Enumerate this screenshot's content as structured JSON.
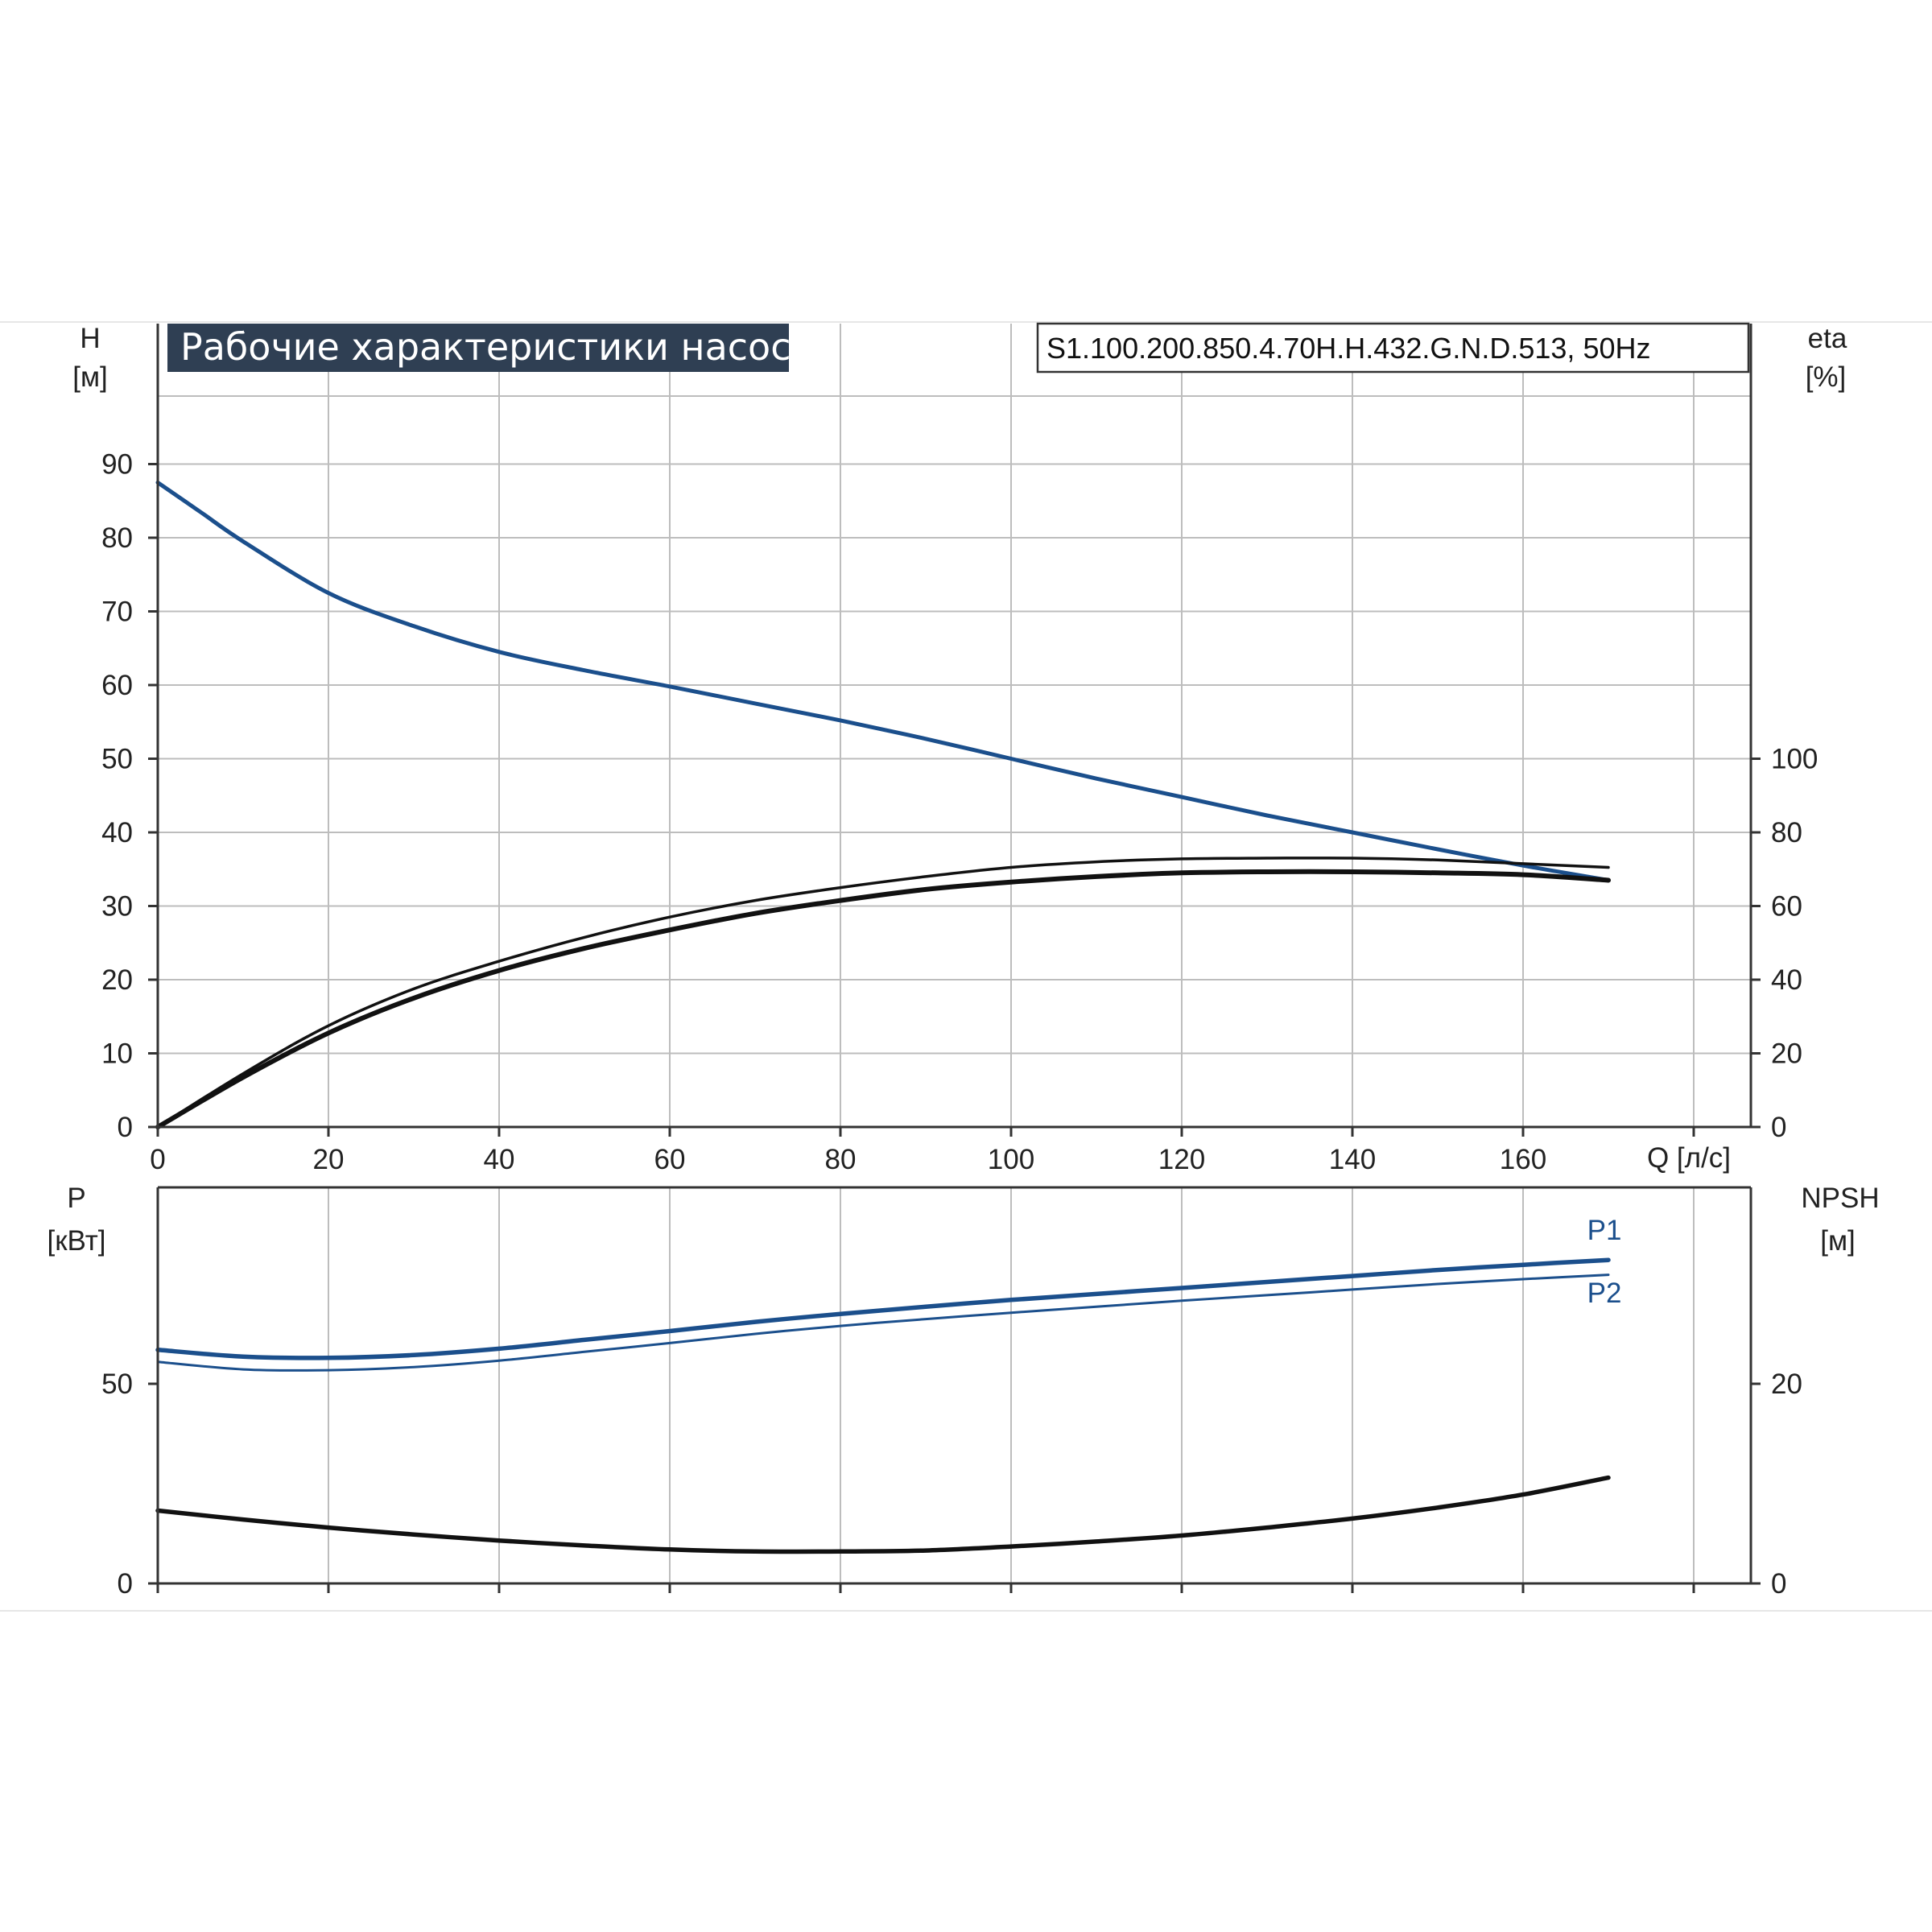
{
  "header": {
    "title": "Рабочие характеристики насоса",
    "model": "S1.100.200.850.4.70H.H.432.G.N.D.513, 50Hz"
  },
  "colors": {
    "blue": "#1b4f8c",
    "black": "#111111",
    "title_bg": "#2f3f53",
    "grid": "#bdbdbd"
  },
  "chart_data": [
    {
      "type": "line",
      "x_unit_label": "Q [л/с]",
      "x_ticks": [
        "0",
        "20",
        "40",
        "60",
        "80",
        "100",
        "120",
        "140",
        "160"
      ],
      "xlim": [
        0,
        186
      ],
      "left_axis": {
        "label_line1": "H",
        "label_line2": "[м]",
        "ticks": [
          "0",
          "10",
          "20",
          "30",
          "40",
          "50",
          "60",
          "70",
          "80",
          "90"
        ],
        "ylim": [
          0,
          100
        ]
      },
      "right_axis": {
        "label_line1": "eta",
        "label_line2": "[%]",
        "ticks": [
          "0",
          "20",
          "40",
          "60",
          "80",
          "100"
        ],
        "ylim": [
          0,
          200
        ]
      },
      "grid": true,
      "series": [
        {
          "axis": "left",
          "color": "#1b4f8c",
          "x": [
            0,
            5,
            10,
            20,
            30,
            40,
            50,
            60,
            70,
            80,
            90,
            100,
            110,
            120,
            130,
            140,
            150,
            160,
            170
          ],
          "y": [
            87.5,
            83.5,
            79.5,
            72.5,
            68,
            64.5,
            62,
            59.8,
            57.5,
            55.2,
            52.7,
            50,
            47.3,
            44.8,
            42.3,
            40,
            37.7,
            35.5,
            33.5
          ]
        },
        {
          "axis": "right",
          "color": "#111111",
          "x": [
            0,
            10,
            20,
            30,
            40,
            50,
            60,
            70,
            80,
            90,
            100,
            110,
            120,
            130,
            140,
            150,
            160,
            170
          ],
          "y": [
            0,
            14.5,
            27.5,
            37.5,
            45,
            51.5,
            57,
            61.5,
            65,
            68,
            70.5,
            72,
            72.8,
            73,
            73,
            72.5,
            71.5,
            70.5
          ]
        },
        {
          "axis": "right",
          "color": "#111111",
          "x": [
            0,
            10,
            20,
            30,
            40,
            50,
            60,
            70,
            80,
            90,
            100,
            110,
            120,
            130,
            140,
            150,
            160,
            170
          ],
          "y": [
            0,
            13.5,
            25.5,
            35,
            42.5,
            48.5,
            53.5,
            58,
            61.5,
            64.5,
            66.5,
            68,
            69,
            69.3,
            69.3,
            69,
            68.5,
            67
          ]
        }
      ]
    },
    {
      "type": "line",
      "left_axis": {
        "label_line1": "P",
        "label_line2": "[кВт]",
        "ticks": [
          "0",
          "50"
        ],
        "ylim": [
          0,
          100
        ]
      },
      "right_axis": {
        "label_line1": "NPSH",
        "label_line2": "[м]",
        "ticks": [
          "0",
          "20"
        ],
        "ylim": [
          0,
          40
        ]
      },
      "grid": true,
      "series": [
        {
          "name": "P1",
          "axis": "left",
          "color": "#1b4f8c",
          "x": [
            0,
            10,
            20,
            30,
            40,
            50,
            60,
            70,
            80,
            90,
            100,
            110,
            120,
            130,
            140,
            150,
            160,
            170
          ],
          "y": [
            58.5,
            56.8,
            56.5,
            57.2,
            58.8,
            61,
            63.2,
            65.5,
            67.5,
            69.3,
            71,
            72.5,
            74,
            75.5,
            77,
            78.5,
            79.8,
            81
          ]
        },
        {
          "name": "P2",
          "axis": "left",
          "color": "#1b4f8c",
          "x": [
            0,
            10,
            20,
            30,
            40,
            50,
            60,
            70,
            80,
            90,
            100,
            110,
            120,
            130,
            140,
            150,
            160,
            170
          ],
          "y": [
            55.5,
            53.6,
            53.4,
            54.2,
            55.8,
            58,
            60.2,
            62.5,
            64.5,
            66.2,
            67.8,
            69.3,
            70.8,
            72.2,
            73.6,
            75,
            76.2,
            77.3
          ]
        },
        {
          "axis": "right",
          "color": "#111111",
          "x": [
            0,
            10,
            20,
            30,
            40,
            50,
            60,
            70,
            80,
            90,
            100,
            110,
            120,
            130,
            140,
            150,
            160,
            170
          ],
          "y": [
            7.3,
            6.4,
            5.6,
            4.9,
            4.3,
            3.8,
            3.4,
            3.2,
            3.2,
            3.3,
            3.7,
            4.2,
            4.8,
            5.6,
            6.5,
            7.6,
            8.9,
            10.6
          ]
        }
      ]
    }
  ]
}
